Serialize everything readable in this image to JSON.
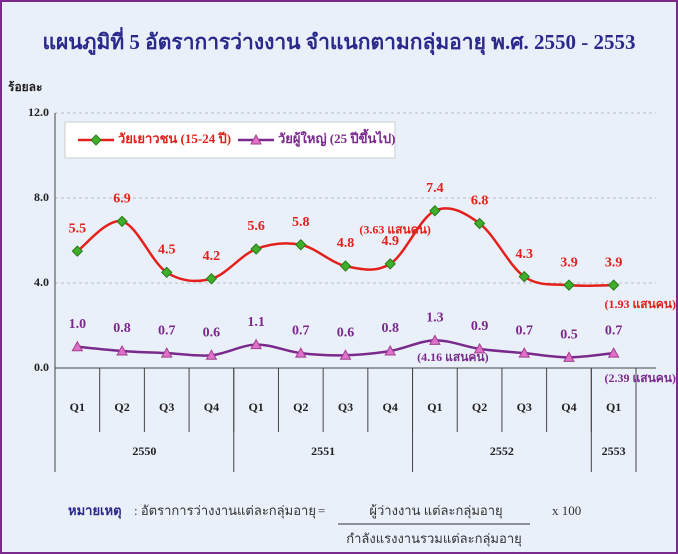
{
  "chart_data": {
    "type": "line",
    "title": "แผนภูมิที่ 5   อัตราการว่างงาน  จำแนกตามกลุ่มอายุ  พ.ศ. 2550 - 2553",
    "y_label": "ร้อยละ",
    "categories": [
      "Q1",
      "Q2",
      "Q3",
      "Q4",
      "Q1",
      "Q2",
      "Q3",
      "Q4",
      "Q1",
      "Q2",
      "Q3",
      "Q4",
      "Q1"
    ],
    "years": [
      "2550",
      "2551",
      "2552",
      "2553"
    ],
    "year_spans": [
      4,
      4,
      4,
      1
    ],
    "ylim": [
      0,
      12
    ],
    "yticks": [
      {
        "value": 0,
        "label": "0.0"
      },
      {
        "value": 4,
        "label": "4.0"
      },
      {
        "value": 8,
        "label": "8.0"
      },
      {
        "value": 12,
        "label": "12.0"
      }
    ],
    "grid": true,
    "series": [
      {
        "name": "วัยเยาวชน (15-24 ปี)",
        "color": "#e3201b",
        "marker_color": "#3fae2a",
        "values": [
          5.5,
          6.9,
          4.5,
          4.2,
          5.6,
          5.8,
          4.8,
          4.9,
          7.4,
          6.8,
          4.3,
          3.9,
          3.9
        ],
        "value_labels": [
          "5.5",
          "6.9",
          "4.5",
          "4.2",
          "5.6",
          "5.8",
          "4.8",
          "4.9",
          "7.4",
          "6.8",
          "4.3",
          "3.9",
          "3.9"
        ]
      },
      {
        "name": "วัยผู้ใหญ่ (25 ปีขึ้นไป)",
        "color": "#7a2a8c",
        "marker_color": "#e070c8",
        "values": [
          1.0,
          0.8,
          0.7,
          0.6,
          1.1,
          0.7,
          0.6,
          0.8,
          1.3,
          0.9,
          0.7,
          0.5,
          0.7
        ],
        "value_labels": [
          "1.0",
          "0.8",
          "0.7",
          "0.6",
          "1.1",
          "0.7",
          "0.6",
          "0.8",
          "1.3",
          "0.9",
          "0.7",
          "0.5",
          "0.7"
        ]
      }
    ],
    "annotations": [
      "(3.63 แสนคน)",
      "(1.93 แสนคน)",
      "(4.16 แสนคน)",
      "(2.39 แสนคน)"
    ],
    "note": {
      "label": "หมายเหตุ",
      "text": ": อัตราการว่างงานแต่ละกลุ่มอายุ",
      "equals": "=",
      "numerator": "ผู้ว่างงาน แต่ละกลุ่มอายุ",
      "denominator": "กำลังแรงงานรวมแต่ละกลุ่มอายุ",
      "multiplier": "x  100"
    }
  }
}
